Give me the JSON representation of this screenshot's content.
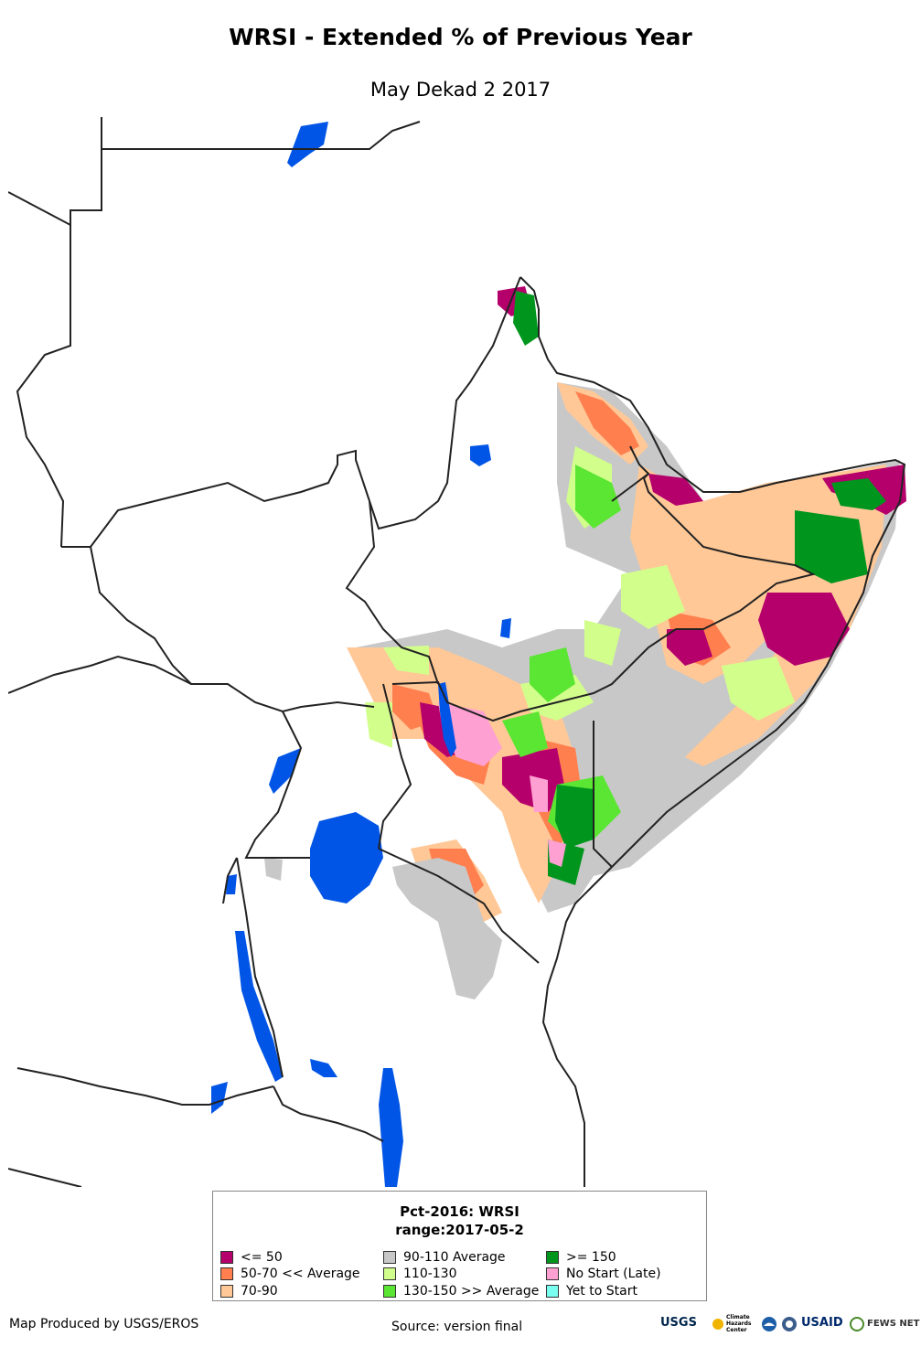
{
  "header": {
    "title": "WRSI - Extended % of Previous Year",
    "subtitle": "May Dekad 2 2017"
  },
  "legend": {
    "title_line1": "Pct-2016: WRSI",
    "title_line2": "range:2017-05-2",
    "items": [
      {
        "label": "<= 50",
        "color": "#b5006b"
      },
      {
        "label": "50-70 << Average",
        "color": "#ff7f4f"
      },
      {
        "label": "70-90",
        "color": "#ffc896"
      },
      {
        "label": "90-110 Average",
        "color": "#c8c8c8"
      },
      {
        "label": "110-130",
        "color": "#d2ff8c"
      },
      {
        "label": "130-150 >> Average",
        "color": "#5ae632"
      },
      {
        "label": ">= 150",
        "color": "#00961e"
      },
      {
        "label": "No Start (Late)",
        "color": "#ffa0d2"
      },
      {
        "label": "Yet to Start",
        "color": "#78fff0"
      }
    ]
  },
  "colors": {
    "water": "#0055e6",
    "border": "#222222"
  },
  "footer": {
    "produced_by": "Map Produced by USGS/EROS",
    "source": "Source: version final",
    "logos": [
      {
        "name": "usgs-logo",
        "text": "USGS"
      },
      {
        "name": "chc-logo",
        "text": "Climate Hazards Center"
      },
      {
        "name": "noaa-logo",
        "text": "NOAA"
      },
      {
        "name": "usaid-logo",
        "text": "USAID"
      },
      {
        "name": "fewsnet-logo",
        "text": "FEWS NET"
      }
    ]
  }
}
